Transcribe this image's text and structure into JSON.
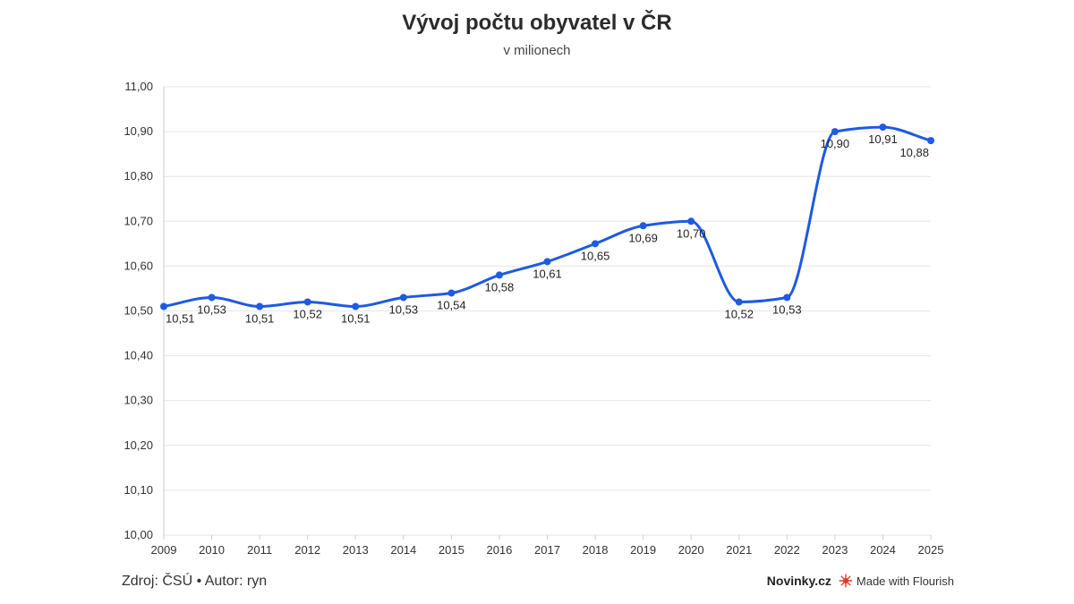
{
  "title": "Vývoj počtu obyvatel v ČR",
  "subtitle": "v milionech",
  "footer": {
    "source": "Zdroj: ČSÚ • Autor: ryn",
    "brand": "Novinky.cz",
    "made_with": "Made with Flourish"
  },
  "colors": {
    "line": "#1f5ae0",
    "grid": "#e6e6e6",
    "axis": "#cccccc"
  },
  "chart_data": {
    "type": "line",
    "title": "Vývoj počtu obyvatel v ČR",
    "subtitle": "v milionech",
    "xlabel": "",
    "ylabel": "",
    "x": [
      "2009",
      "2010",
      "2011",
      "2012",
      "2013",
      "2014",
      "2015",
      "2016",
      "2017",
      "2018",
      "2019",
      "2020",
      "2021",
      "2022",
      "2023",
      "2024",
      "2025"
    ],
    "series": [
      {
        "values": [
          10.51,
          10.53,
          10.51,
          10.52,
          10.51,
          10.53,
          10.54,
          10.58,
          10.61,
          10.65,
          10.69,
          10.7,
          10.52,
          10.53,
          10.9,
          10.91,
          10.88
        ],
        "labels": [
          "10,51",
          "10,53",
          "10,51",
          "10,52",
          "10,51",
          "10,53",
          "10,54",
          "10,58",
          "10,61",
          "10,65",
          "10,69",
          "10,70",
          "10,52",
          "10,53",
          "10,90",
          "10,91",
          "10,88"
        ]
      }
    ],
    "ylim": [
      10.0,
      11.0
    ],
    "yticks": [
      "10,00",
      "10,10",
      "10,20",
      "10,30",
      "10,40",
      "10,50",
      "10,60",
      "10,70",
      "10,80",
      "10,90",
      "11,00"
    ],
    "grid": true,
    "legend": "none"
  }
}
